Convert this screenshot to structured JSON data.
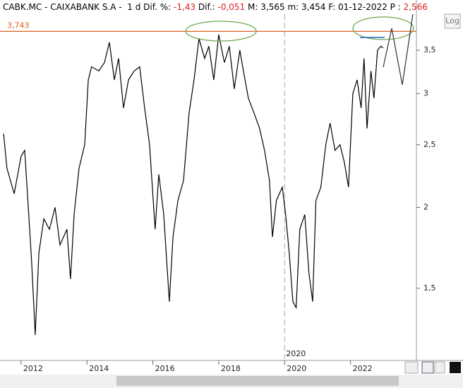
{
  "header": {
    "symbol": "CABK.MC - CAIXABANK S.A -  1 d",
    "fields": [
      {
        "label": "Dif. %:",
        "value": "-1,43",
        "color": "#e02020"
      },
      {
        "label": "Dif.:",
        "value": "-0,051",
        "color": "#e02020"
      },
      {
        "label": "M:",
        "value": "3,565",
        "color": "#000000"
      },
      {
        "label": "m:",
        "value": "3,454",
        "color": "#000000"
      },
      {
        "label": "F:",
        "value": "01-12-2022",
        "color": "#000000"
      },
      {
        "label": "P :",
        "value": "2,566",
        "color": "#e02020"
      }
    ]
  },
  "ui": {
    "log_button": "Log"
  },
  "chart_data": {
    "type": "line",
    "log_scale": true,
    "color": "#000000",
    "x": [
      2011.47,
      2011.57,
      2011.79,
      2012.0,
      2012.11,
      2012.22,
      2012.32,
      2012.43,
      2012.54,
      2012.69,
      2012.86,
      2013.03,
      2013.18,
      2013.39,
      2013.5,
      2013.61,
      2013.76,
      2013.93,
      2014.04,
      2014.14,
      2014.36,
      2014.53,
      2014.68,
      2014.83,
      2014.96,
      2015.11,
      2015.26,
      2015.43,
      2015.6,
      2015.75,
      2015.9,
      2016.07,
      2016.18,
      2016.33,
      2016.5,
      2016.61,
      2016.76,
      2016.93,
      2017.1,
      2017.25,
      2017.4,
      2017.57,
      2017.7,
      2017.85,
      2018.0,
      2018.17,
      2018.32,
      2018.47,
      2018.64,
      2018.75,
      2018.9,
      2019.07,
      2019.24,
      2019.39,
      2019.54,
      2019.63,
      2019.75,
      2019.93,
      2020.03,
      2020.14,
      2020.25,
      2020.35,
      2020.46,
      2020.61,
      2020.74,
      2020.85,
      2020.95,
      2021.1,
      2021.25,
      2021.38,
      2021.53,
      2021.68,
      2021.81,
      2021.94,
      2022.07,
      2022.2,
      2022.32,
      2022.41,
      2022.5,
      2022.62,
      2022.71,
      2022.82,
      2022.92,
      2022.99
    ],
    "values": [
      2.6,
      2.3,
      2.1,
      2.4,
      2.45,
      2.0,
      1.65,
      1.27,
      1.7,
      1.92,
      1.85,
      2.0,
      1.75,
      1.85,
      1.55,
      1.95,
      2.3,
      2.5,
      3.15,
      3.3,
      3.25,
      3.35,
      3.6,
      3.15,
      3.4,
      2.85,
      3.15,
      3.25,
      3.3,
      2.85,
      2.5,
      1.85,
      2.25,
      1.95,
      1.43,
      1.8,
      2.05,
      2.2,
      2.8,
      3.15,
      3.65,
      3.4,
      3.55,
      3.15,
      3.7,
      3.35,
      3.55,
      3.05,
      3.5,
      3.25,
      2.95,
      2.8,
      2.65,
      2.45,
      2.2,
      1.8,
      2.05,
      2.15,
      1.95,
      1.7,
      1.43,
      1.4,
      1.85,
      1.95,
      1.58,
      1.43,
      2.05,
      2.15,
      2.5,
      2.7,
      2.45,
      2.5,
      2.35,
      2.15,
      3.0,
      3.15,
      2.85,
      3.4,
      2.65,
      3.25,
      2.95,
      3.5,
      3.55,
      3.53
    ],
    "xlim": [
      2011.36,
      2024.0
    ],
    "ylim": [
      1.16,
      3.98
    ],
    "xticks": [
      2012,
      2014,
      2016,
      2018,
      2020,
      2022
    ],
    "yticks": [
      {
        "value": 1.5,
        "label": "1,5"
      },
      2,
      {
        "value": 2.5,
        "label": "2,5"
      },
      3,
      {
        "value": 3.5,
        "label": "3,5"
      }
    ],
    "hline": {
      "value": 3.743,
      "label": "3,743",
      "color": "#e06020"
    },
    "vline": 2020
  }
}
